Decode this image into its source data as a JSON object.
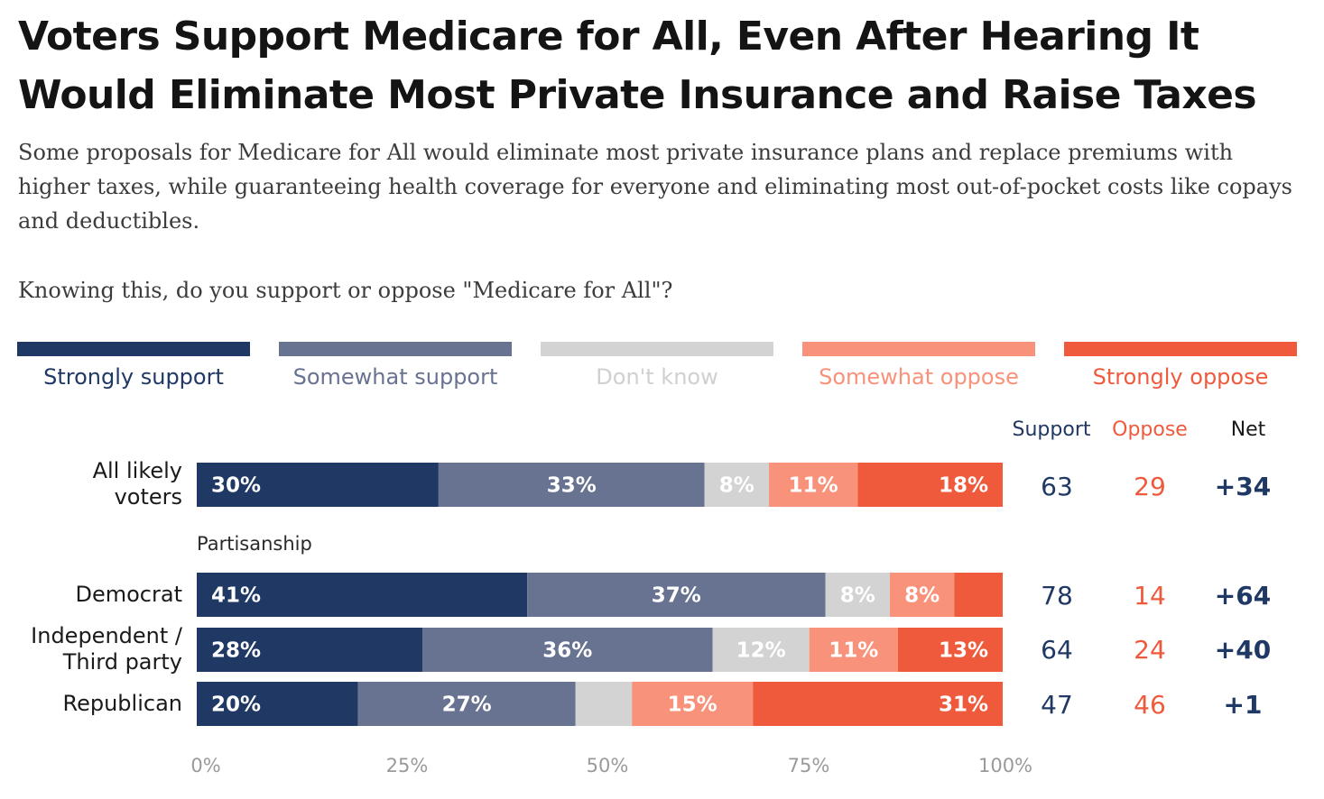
{
  "title": "Voters Support Medicare for All, Even After Hearing It Would Eliminate Most Private Insurance and Raise Taxes",
  "subtitle": "Some proposals for Medicare for All would eliminate most private insurance plans and replace premiums with higher taxes, while guaranteeing health coverage for everyone and eliminating most out-of-pocket costs like copays and deductibles.",
  "question": "Knowing this, do you support or oppose \"Medicare for All\"?",
  "columns": {
    "support": "Support",
    "oppose": "Oppose",
    "net": "Net"
  },
  "section_label": "Partisanship",
  "colors": {
    "strongly_support": "#1f3864",
    "somewhat_support": "#687391",
    "dont_know": "#d3d3d3",
    "somewhat_oppose": "#f8927a",
    "strongly_oppose": "#f05a3c",
    "text_dont_know": "#d0d0d0",
    "text_support": "#1f3864",
    "text_oppose": "#f05a3c"
  },
  "chart_data": {
    "type": "bar",
    "orientation": "horizontal",
    "stacked": true,
    "xlim": [
      0,
      100
    ],
    "ticks": [
      "0%",
      "25%",
      "50%",
      "75%",
      "100%"
    ],
    "legend_position": "top",
    "series": [
      {
        "name": "Strongly support",
        "key": "strongly_support"
      },
      {
        "name": "Somewhat support",
        "key": "somewhat_support"
      },
      {
        "name": "Don't know",
        "key": "dont_know"
      },
      {
        "name": "Somewhat oppose",
        "key": "somewhat_oppose"
      },
      {
        "name": "Strongly oppose",
        "key": "strongly_oppose"
      }
    ],
    "rows": [
      {
        "label": "All likely voters",
        "label_lines": [
          "All likely",
          "voters"
        ],
        "values": [
          30,
          33,
          8,
          11,
          18
        ],
        "labels": [
          "30%",
          "33%",
          "8%",
          "11%",
          "18%"
        ],
        "support": "63",
        "oppose": "29",
        "net": "+34"
      },
      {
        "label": "Democrat",
        "label_lines": [
          "Democrat"
        ],
        "values": [
          41,
          37,
          8,
          8,
          6
        ],
        "labels": [
          "41%",
          "37%",
          "8%",
          "8%",
          ""
        ],
        "support": "78",
        "oppose": "14",
        "net": "+64"
      },
      {
        "label": "Independent / Third party",
        "label_lines": [
          "Independent /",
          "Third party"
        ],
        "values": [
          28,
          36,
          12,
          11,
          13
        ],
        "labels": [
          "28%",
          "36%",
          "12%",
          "11%",
          "13%"
        ],
        "support": "64",
        "oppose": "24",
        "net": "+40"
      },
      {
        "label": "Republican",
        "label_lines": [
          "Republican"
        ],
        "values": [
          20,
          27,
          7,
          15,
          31
        ],
        "labels": [
          "20%",
          "27%",
          "",
          "15%",
          "31%"
        ],
        "support": "47",
        "oppose": "46",
        "net": "+1"
      }
    ]
  }
}
